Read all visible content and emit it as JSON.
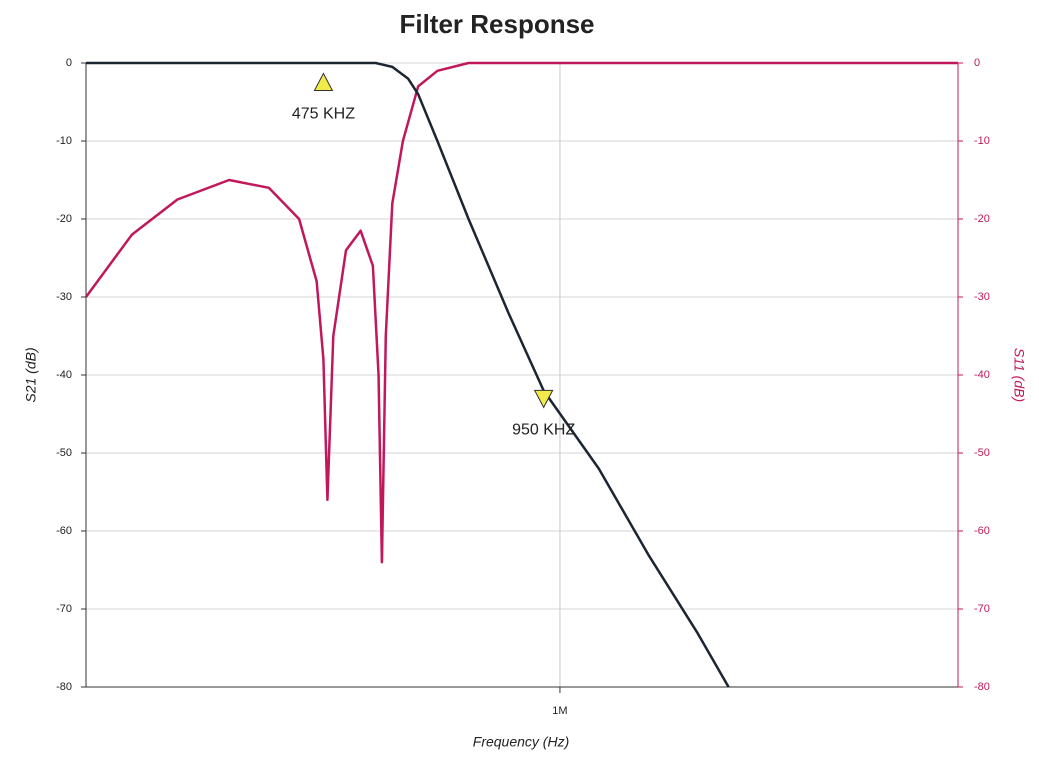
{
  "chart_data": {
    "type": "line",
    "title": "Filter Response",
    "x_label": "Frequency (Hz)",
    "y_label": "S21 (dB)",
    "y2_label": "S11 (dB)",
    "x_log": true,
    "xlim": [
      225000,
      3500000
    ],
    "xticks": [
      {
        "value": 1000000,
        "label": "1M"
      }
    ],
    "ylim": [
      -80,
      0
    ],
    "yticks": [
      0,
      -10,
      -20,
      -30,
      -40,
      -50,
      -60,
      -70,
      -80
    ],
    "y2lim": [
      -80,
      0
    ],
    "y2ticks": [
      0,
      -10,
      -20,
      -30,
      -40,
      -50,
      -60,
      -70,
      -80
    ],
    "grid": true,
    "series": [
      {
        "name": "S21",
        "color": "#1c2633",
        "x": [
          225000,
          300000,
          400000,
          500000,
          560000,
          590000,
          620000,
          640000,
          680000,
          750000,
          850000,
          950000,
          1130000,
          1320000,
          1540000,
          1700000
        ],
        "values": [
          0,
          0,
          0,
          0,
          0,
          -0.5,
          -2,
          -4,
          -10,
          -20,
          -32,
          -42,
          -52,
          -63,
          -73,
          -80
        ]
      },
      {
        "name": "S11",
        "color": "#c0185a",
        "axis": "y2",
        "x": [
          225000,
          260000,
          300000,
          353000,
          400000,
          440000,
          465000,
          475000,
          481000,
          490000,
          510000,
          534000,
          555000,
          565000,
          571000,
          578000,
          590000,
          610000,
          640000,
          680000,
          750000,
          1000000,
          3500000
        ],
        "values": [
          -30,
          -22,
          -17.5,
          -15,
          -16,
          -20,
          -28,
          -38,
          -56,
          -35,
          -24,
          -21.5,
          -26,
          -40,
          -64,
          -35,
          -18,
          -10,
          -3,
          -1,
          0,
          0,
          0
        ]
      }
    ],
    "markers": [
      {
        "x": 475000,
        "y": -2.5,
        "label": "475 KHZ",
        "direction": "up"
      },
      {
        "x": 950000,
        "y": -43,
        "label": "950 KHZ",
        "direction": "down"
      }
    ]
  }
}
